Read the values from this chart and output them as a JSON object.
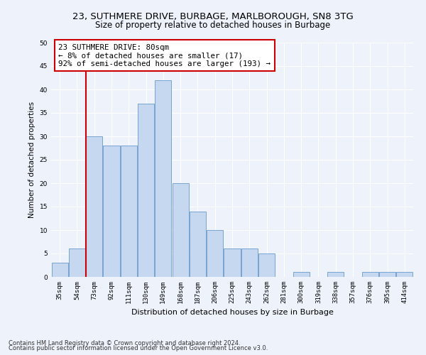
{
  "title1": "23, SUTHMERE DRIVE, BURBAGE, MARLBOROUGH, SN8 3TG",
  "title2": "Size of property relative to detached houses in Burbage",
  "xlabel": "Distribution of detached houses by size in Burbage",
  "ylabel": "Number of detached properties",
  "categories": [
    "35sqm",
    "54sqm",
    "73sqm",
    "92sqm",
    "111sqm",
    "130sqm",
    "149sqm",
    "168sqm",
    "187sqm",
    "206sqm",
    "225sqm",
    "243sqm",
    "262sqm",
    "281sqm",
    "300sqm",
    "319sqm",
    "338sqm",
    "357sqm",
    "376sqm",
    "395sqm",
    "414sqm"
  ],
  "values": [
    3,
    6,
    30,
    28,
    28,
    37,
    42,
    20,
    14,
    10,
    6,
    6,
    5,
    0,
    1,
    0,
    1,
    0,
    1,
    1,
    1
  ],
  "bar_color": "#c5d8f0",
  "bar_edge_color": "#6699cc",
  "vline_x_index": 2,
  "vline_color": "#cc0000",
  "annotation_text": "23 SUTHMERE DRIVE: 80sqm\n← 8% of detached houses are smaller (17)\n92% of semi-detached houses are larger (193) →",
  "annotation_box_color": "#ffffff",
  "annotation_box_edge": "#cc0000",
  "ylim": [
    0,
    50
  ],
  "yticks": [
    0,
    5,
    10,
    15,
    20,
    25,
    30,
    35,
    40,
    45,
    50
  ],
  "footer1": "Contains HM Land Registry data © Crown copyright and database right 2024.",
  "footer2": "Contains public sector information licensed under the Open Government Licence v3.0.",
  "bg_color": "#edf2fb",
  "grid_color": "#ffffff",
  "title_fontsize": 9.5,
  "subtitle_fontsize": 8.5,
  "ylabel_fontsize": 7.5,
  "xlabel_fontsize": 8,
  "tick_fontsize": 6.5,
  "annotation_fontsize": 7.8,
  "footer_fontsize": 6
}
